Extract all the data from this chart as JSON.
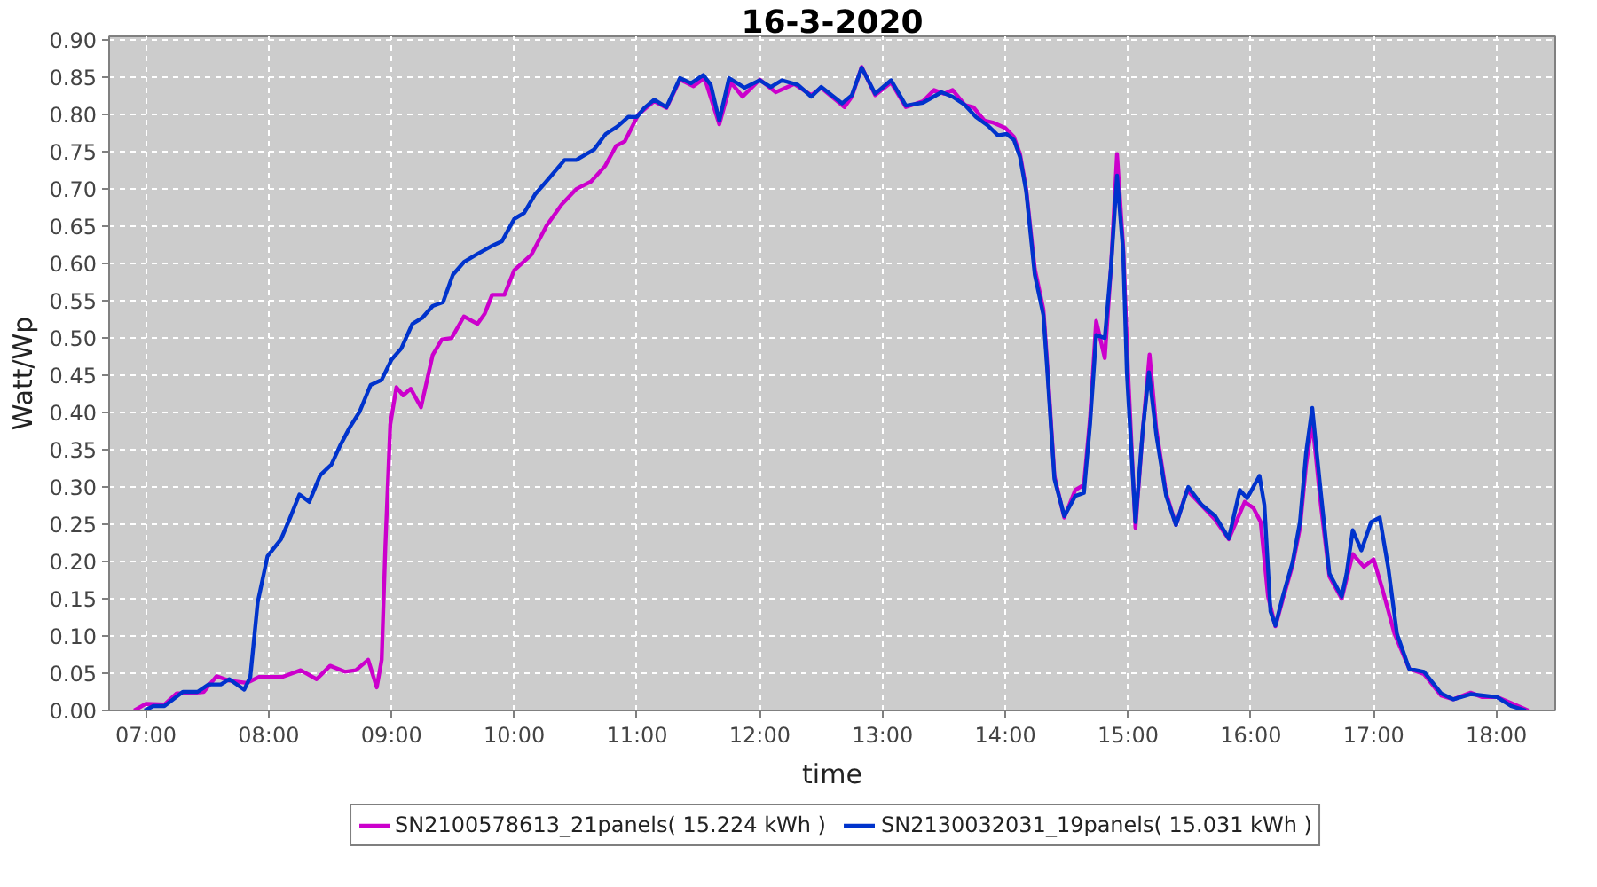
{
  "chart_data": {
    "type": "line",
    "title": "16-3-2020",
    "xlabel": "time",
    "ylabel": "Watt/Wp",
    "xlim": [
      6.7,
      18.48
    ],
    "ylim": [
      0,
      0.905
    ],
    "xticks": [
      {
        "value": 7,
        "label": "07:00"
      },
      {
        "value": 8,
        "label": "08:00"
      },
      {
        "value": 9,
        "label": "09:00"
      },
      {
        "value": 10,
        "label": "10:00"
      },
      {
        "value": 11,
        "label": "11:00"
      },
      {
        "value": 12,
        "label": "12:00"
      },
      {
        "value": 13,
        "label": "13:00"
      },
      {
        "value": 14,
        "label": "14:00"
      },
      {
        "value": 15,
        "label": "15:00"
      },
      {
        "value": 16,
        "label": "16:00"
      },
      {
        "value": 17,
        "label": "17:00"
      },
      {
        "value": 18,
        "label": "18:00"
      }
    ],
    "yticks": [
      {
        "value": 0,
        "label": "0.00"
      },
      {
        "value": 0.05,
        "label": "0.05"
      },
      {
        "value": 0.1,
        "label": "0.10"
      },
      {
        "value": 0.15,
        "label": "0.15"
      },
      {
        "value": 0.2,
        "label": "0.20"
      },
      {
        "value": 0.25,
        "label": "0.25"
      },
      {
        "value": 0.3,
        "label": "0.30"
      },
      {
        "value": 0.35,
        "label": "0.35"
      },
      {
        "value": 0.4,
        "label": "0.40"
      },
      {
        "value": 0.45,
        "label": "0.45"
      },
      {
        "value": 0.5,
        "label": "0.50"
      },
      {
        "value": 0.55,
        "label": "0.55"
      },
      {
        "value": 0.6,
        "label": "0.60"
      },
      {
        "value": 0.65,
        "label": "0.65"
      },
      {
        "value": 0.7,
        "label": "0.70"
      },
      {
        "value": 0.75,
        "label": "0.75"
      },
      {
        "value": 0.8,
        "label": "0.80"
      },
      {
        "value": 0.85,
        "label": "0.85"
      },
      {
        "value": 0.9,
        "label": "0.90"
      }
    ],
    "grid": true,
    "legend": "bottom",
    "series": [
      {
        "name": "SN2100578613_21panels( 15.224 kWh )",
        "color": "#cc00cc",
        "x": [
          6.904,
          7.0,
          7.15,
          7.25,
          7.35,
          7.47,
          7.575,
          7.68,
          7.82,
          7.92,
          8.11,
          8.26,
          8.39,
          8.5,
          8.62,
          8.71,
          8.81,
          8.88,
          8.92,
          8.95,
          8.99,
          9.04,
          9.095,
          9.157,
          9.24,
          9.335,
          9.41,
          9.49,
          9.59,
          9.7,
          9.76,
          9.82,
          9.92,
          10.0,
          10.14,
          10.26,
          10.385,
          10.505,
          10.625,
          10.74,
          10.83,
          10.9,
          11.01,
          11.14,
          11.24,
          11.35,
          11.46,
          11.55,
          11.67,
          11.765,
          11.86,
          12.0,
          12.13,
          12.28,
          12.42,
          12.5,
          12.69,
          12.75,
          12.83,
          12.94,
          13.07,
          13.19,
          13.33,
          13.42,
          13.5,
          13.57,
          13.67,
          13.74,
          13.83,
          13.905,
          14.0,
          14.07,
          14.12,
          14.17,
          14.24,
          14.31,
          14.34,
          14.4,
          14.48,
          14.57,
          14.64,
          14.69,
          14.74,
          14.81,
          14.86,
          14.91,
          14.96,
          15.0,
          15.06,
          15.12,
          15.175,
          15.23,
          15.31,
          15.39,
          15.48,
          15.6,
          15.71,
          15.82,
          15.95,
          16.02,
          16.08,
          16.14,
          16.2,
          16.26,
          16.34,
          16.4,
          16.45,
          16.5,
          16.57,
          16.64,
          16.74,
          16.83,
          16.92,
          17.0,
          17.07,
          17.17,
          17.29,
          17.41,
          17.55,
          17.65,
          17.79,
          17.885,
          18.005,
          18.12,
          18.26
        ],
        "values": [
          0.0,
          0.009,
          0.008,
          0.023,
          0.023,
          0.025,
          0.046,
          0.04,
          0.037,
          0.045,
          0.045,
          0.054,
          0.042,
          0.06,
          0.052,
          0.054,
          0.068,
          0.031,
          0.068,
          0.22,
          0.384,
          0.434,
          0.423,
          0.432,
          0.407,
          0.477,
          0.498,
          0.5,
          0.529,
          0.519,
          0.533,
          0.558,
          0.558,
          0.591,
          0.612,
          0.65,
          0.679,
          0.7,
          0.71,
          0.731,
          0.758,
          0.764,
          0.8,
          0.818,
          0.809,
          0.847,
          0.838,
          0.849,
          0.787,
          0.843,
          0.824,
          0.847,
          0.83,
          0.841,
          0.826,
          0.836,
          0.81,
          0.824,
          0.864,
          0.826,
          0.843,
          0.81,
          0.818,
          0.833,
          0.828,
          0.833,
          0.813,
          0.81,
          0.792,
          0.789,
          0.782,
          0.77,
          0.747,
          0.7,
          0.593,
          0.539,
          0.469,
          0.315,
          0.259,
          0.296,
          0.303,
          0.392,
          0.523,
          0.473,
          0.593,
          0.747,
          0.623,
          0.454,
          0.245,
          0.377,
          0.478,
          0.377,
          0.292,
          0.249,
          0.296,
          0.275,
          0.256,
          0.23,
          0.28,
          0.272,
          0.253,
          0.153,
          0.113,
          0.149,
          0.195,
          0.245,
          0.33,
          0.388,
          0.276,
          0.18,
          0.15,
          0.21,
          0.193,
          0.203,
          0.164,
          0.103,
          0.056,
          0.049,
          0.02,
          0.015,
          0.024,
          0.018,
          0.018,
          0.01,
          0.0
        ]
      },
      {
        "name": "SN2130032031_19panels( 15.031 kWh )",
        "color": "#0033cc",
        "x": [
          6.99,
          7.06,
          7.15,
          7.3,
          7.42,
          7.51,
          7.61,
          7.68,
          7.8,
          7.85,
          7.91,
          7.99,
          8.1,
          8.17,
          8.25,
          8.33,
          8.42,
          8.51,
          8.58,
          8.66,
          8.74,
          8.83,
          8.92,
          9.0,
          9.08,
          9.17,
          9.25,
          9.335,
          9.42,
          9.5,
          9.59,
          9.69,
          9.81,
          9.9,
          10.0,
          10.08,
          10.17,
          10.26,
          10.41,
          10.505,
          10.65,
          10.745,
          10.84,
          10.93,
          11.0,
          11.06,
          11.14,
          11.24,
          11.35,
          11.44,
          11.54,
          11.6,
          11.67,
          11.75,
          11.875,
          12.0,
          12.09,
          12.18,
          12.31,
          12.42,
          12.5,
          12.67,
          12.75,
          12.83,
          12.94,
          13.07,
          13.19,
          13.33,
          13.48,
          13.57,
          13.67,
          13.76,
          13.86,
          13.94,
          14.01,
          14.07,
          14.12,
          14.17,
          14.24,
          14.31,
          14.34,
          14.4,
          14.48,
          14.57,
          14.64,
          14.69,
          14.74,
          14.81,
          14.86,
          14.91,
          14.96,
          14.99,
          15.06,
          15.12,
          15.17,
          15.23,
          15.31,
          15.39,
          15.49,
          15.6,
          15.71,
          15.82,
          15.91,
          15.97,
          16.07,
          16.11,
          16.16,
          16.2,
          16.26,
          16.34,
          16.4,
          16.45,
          16.5,
          16.57,
          16.64,
          16.74,
          16.78,
          16.83,
          16.9,
          16.98,
          17.05,
          17.12,
          17.19,
          17.29,
          17.41,
          17.55,
          17.65,
          17.79,
          18.005,
          18.12,
          18.24
        ],
        "values": [
          0.0,
          0.006,
          0.006,
          0.025,
          0.025,
          0.035,
          0.035,
          0.042,
          0.028,
          0.045,
          0.145,
          0.207,
          0.23,
          0.257,
          0.29,
          0.28,
          0.316,
          0.33,
          0.355,
          0.38,
          0.401,
          0.437,
          0.444,
          0.471,
          0.486,
          0.519,
          0.527,
          0.543,
          0.548,
          0.585,
          0.602,
          0.612,
          0.623,
          0.63,
          0.66,
          0.668,
          0.693,
          0.71,
          0.739,
          0.739,
          0.753,
          0.774,
          0.784,
          0.797,
          0.797,
          0.809,
          0.82,
          0.81,
          0.849,
          0.842,
          0.853,
          0.84,
          0.792,
          0.849,
          0.836,
          0.846,
          0.837,
          0.846,
          0.84,
          0.824,
          0.837,
          0.815,
          0.826,
          0.863,
          0.828,
          0.846,
          0.812,
          0.816,
          0.83,
          0.824,
          0.813,
          0.797,
          0.785,
          0.772,
          0.774,
          0.766,
          0.743,
          0.697,
          0.585,
          0.531,
          0.461,
          0.311,
          0.261,
          0.288,
          0.292,
          0.384,
          0.504,
          0.5,
          0.593,
          0.718,
          0.616,
          0.454,
          0.253,
          0.377,
          0.454,
          0.37,
          0.288,
          0.249,
          0.3,
          0.276,
          0.261,
          0.231,
          0.296,
          0.285,
          0.315,
          0.276,
          0.133,
          0.114,
          0.153,
          0.199,
          0.253,
          0.346,
          0.406,
          0.292,
          0.184,
          0.153,
          0.184,
          0.242,
          0.215,
          0.253,
          0.259,
          0.191,
          0.103,
          0.056,
          0.052,
          0.023,
          0.015,
          0.022,
          0.018,
          0.006,
          0.0
        ]
      }
    ]
  }
}
